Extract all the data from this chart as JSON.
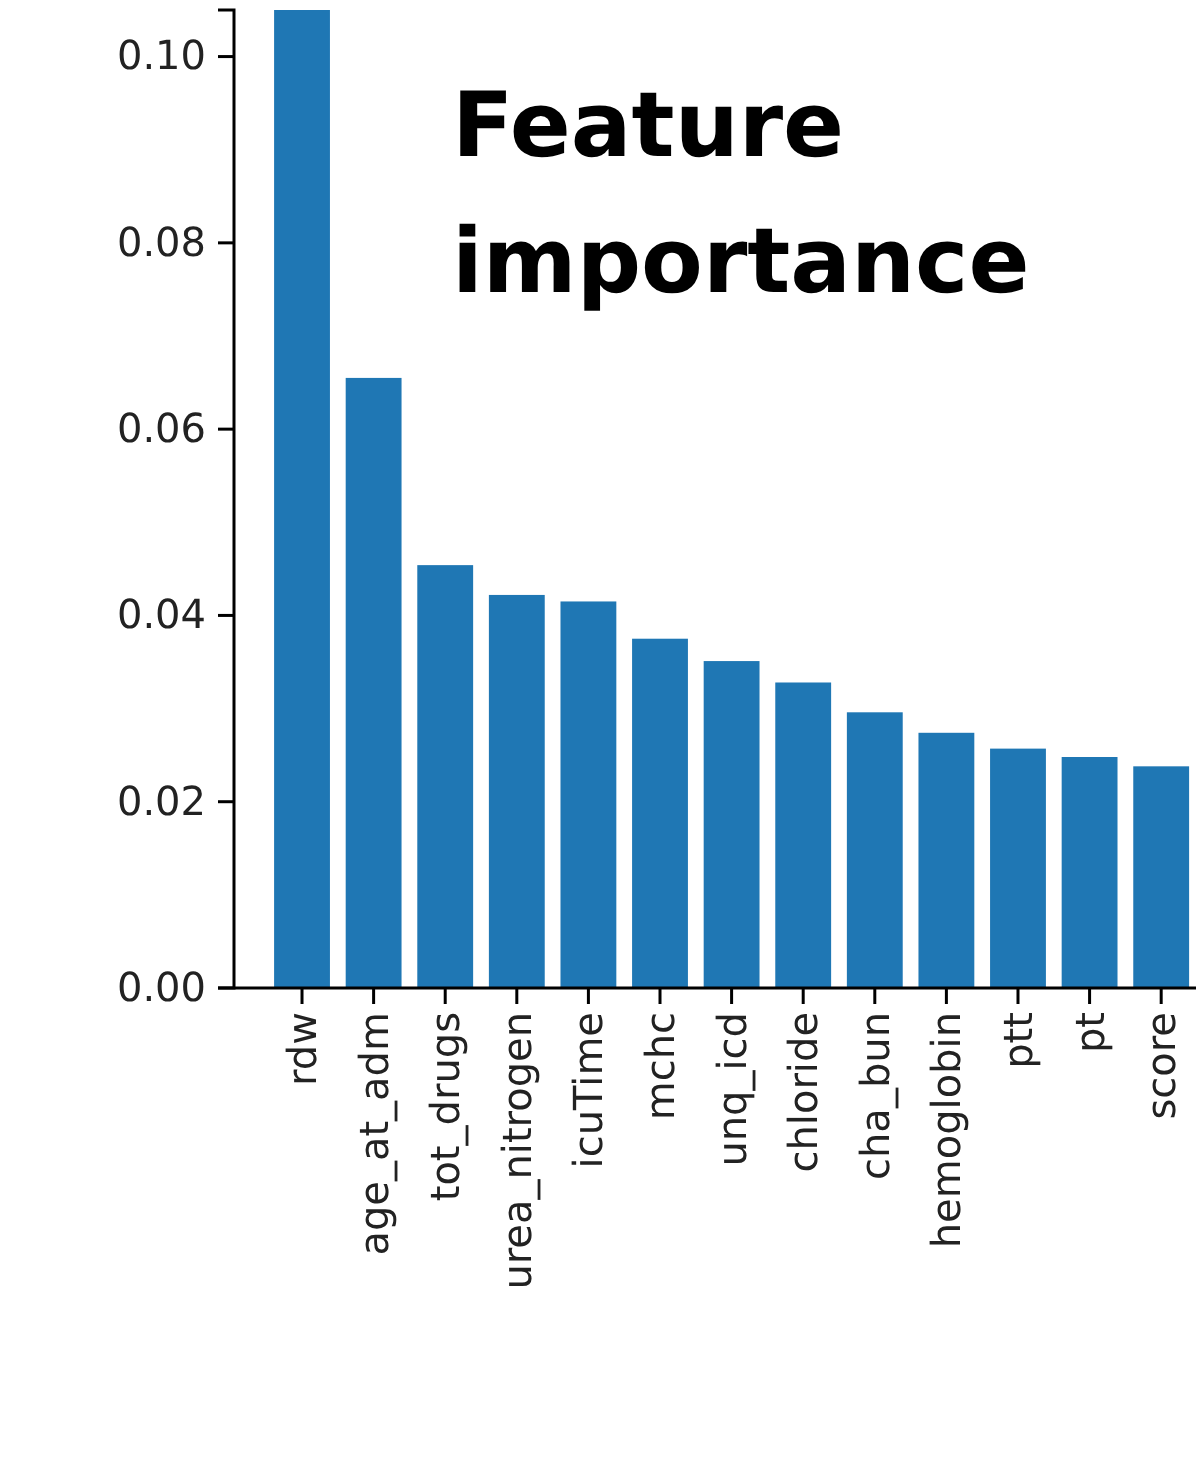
{
  "chart_data": {
    "type": "bar",
    "title": "Feature importance",
    "categories": [
      "rdw",
      "age_at_adm",
      "tot_drugs",
      "urea_nitrogen",
      "icuTime",
      "mchc",
      "unq_icd",
      "chloride",
      "cha_bun",
      "hemoglobin",
      "ptt",
      "pt",
      "score"
    ],
    "values": [
      0.105,
      0.0655,
      0.0454,
      0.0422,
      0.0415,
      0.0375,
      0.0351,
      0.0328,
      0.0296,
      0.0274,
      0.0257,
      0.0248,
      0.0238
    ],
    "color": "#1f77b4",
    "ylim": [
      0,
      0.105
    ],
    "yticks": [
      {
        "value": 0,
        "label": "0.00"
      },
      {
        "value": 0.02,
        "label": "0.02"
      },
      {
        "value": 0.04,
        "label": "0.04"
      },
      {
        "value": 0.06,
        "label": "0.06"
      },
      {
        "value": 0.08,
        "label": "0.08"
      },
      {
        "value": 0.1,
        "label": "0.10"
      }
    ],
    "grid": false
  }
}
